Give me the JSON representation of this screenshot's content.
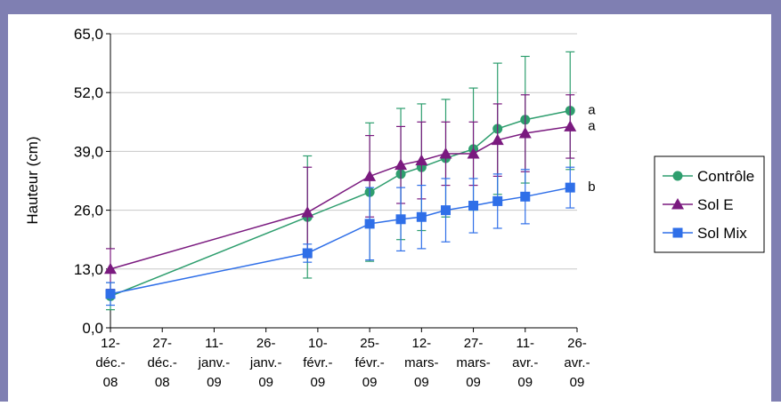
{
  "chart_data": {
    "type": "line",
    "title": "",
    "xlabel": "",
    "ylabel": "Hauteur (cm)",
    "ylim": [
      0,
      65
    ],
    "yticks": [
      "0,0",
      "13,0",
      "26,0",
      "39,0",
      "52,0",
      "65,0"
    ],
    "ytick_values": [
      0,
      13,
      26,
      39,
      52,
      65
    ],
    "xlim": [
      "2008-12-12",
      "2009-04-26"
    ],
    "xticks": [
      {
        "date": "2008-12-12",
        "lines": [
          "12-",
          "déc.-",
          "08"
        ]
      },
      {
        "date": "2008-12-27",
        "lines": [
          "27-",
          "déc.-",
          "08"
        ]
      },
      {
        "date": "2009-01-11",
        "lines": [
          "11-",
          "janv.-",
          "09"
        ]
      },
      {
        "date": "2009-01-26",
        "lines": [
          "26-",
          "janv.-",
          "09"
        ]
      },
      {
        "date": "2009-02-10",
        "lines": [
          "10-",
          "févr.-",
          "09"
        ]
      },
      {
        "date": "2009-02-25",
        "lines": [
          "25-",
          "févr.-",
          "09"
        ]
      },
      {
        "date": "2009-03-12",
        "lines": [
          "12-",
          "mars-",
          "09"
        ]
      },
      {
        "date": "2009-03-27",
        "lines": [
          "27-",
          "mars-",
          "09"
        ]
      },
      {
        "date": "2009-04-11",
        "lines": [
          "11-",
          "avr.-",
          "09"
        ]
      },
      {
        "date": "2009-04-26",
        "lines": [
          "26-",
          "avr.-",
          "09"
        ]
      }
    ],
    "grid": "horizontal",
    "legend": "right",
    "series": [
      {
        "name": "Contrôle",
        "color": "#2e9e6e",
        "marker": "circle",
        "points": [
          {
            "x": "2008-12-12",
            "y": 7.0,
            "err": 3.0
          },
          {
            "x": "2009-02-07",
            "y": 24.5,
            "err": 13.5
          },
          {
            "x": "2009-02-25",
            "y": 30.0,
            "err": 15.3
          },
          {
            "x": "2009-03-06",
            "y": 34.0,
            "err": 14.5
          },
          {
            "x": "2009-03-12",
            "y": 35.5,
            "err": 14.0
          },
          {
            "x": "2009-03-19",
            "y": 37.5,
            "err": 13.0
          },
          {
            "x": "2009-03-27",
            "y": 39.5,
            "err": 13.5
          },
          {
            "x": "2009-04-03",
            "y": 44.0,
            "err": 14.5
          },
          {
            "x": "2009-04-11",
            "y": 46.0,
            "err": 14.0
          },
          {
            "x": "2009-04-24",
            "y": 48.0,
            "err": 13.0
          }
        ]
      },
      {
        "name": "Sol E",
        "color": "#7a1a7f",
        "marker": "triangle",
        "points": [
          {
            "x": "2008-12-12",
            "y": 13.0,
            "err": 4.5
          },
          {
            "x": "2009-02-07",
            "y": 25.5,
            "err": 10.0
          },
          {
            "x": "2009-02-25",
            "y": 33.5,
            "err": 9.0
          },
          {
            "x": "2009-03-06",
            "y": 36.0,
            "err": 8.5
          },
          {
            "x": "2009-03-12",
            "y": 37.0,
            "err": 8.5
          },
          {
            "x": "2009-03-19",
            "y": 38.5,
            "err": 7.0
          },
          {
            "x": "2009-03-27",
            "y": 38.5,
            "err": 7.0
          },
          {
            "x": "2009-04-03",
            "y": 41.5,
            "err": 8.0
          },
          {
            "x": "2009-04-11",
            "y": 43.0,
            "err": 8.5
          },
          {
            "x": "2009-04-24",
            "y": 44.5,
            "err": 7.0
          }
        ]
      },
      {
        "name": "Sol Mix",
        "color": "#2f6fe8",
        "marker": "square",
        "points": [
          {
            "x": "2008-12-12",
            "y": 7.5,
            "err": 2.5
          },
          {
            "x": "2009-02-07",
            "y": 16.5,
            "err": 2.0
          },
          {
            "x": "2009-02-25",
            "y": 23.0,
            "err": 8.0
          },
          {
            "x": "2009-03-06",
            "y": 24.0,
            "err": 7.0
          },
          {
            "x": "2009-03-12",
            "y": 24.5,
            "err": 7.0
          },
          {
            "x": "2009-03-19",
            "y": 26.0,
            "err": 7.0
          },
          {
            "x": "2009-03-27",
            "y": 27.0,
            "err": 6.0
          },
          {
            "x": "2009-04-03",
            "y": 28.0,
            "err": 6.0
          },
          {
            "x": "2009-04-11",
            "y": 29.0,
            "err": 6.0
          },
          {
            "x": "2009-04-24",
            "y": 31.0,
            "err": 4.5
          }
        ]
      }
    ],
    "annotations": [
      {
        "text": "a",
        "series": "Contrôle"
      },
      {
        "text": "a",
        "series": "Sol E"
      },
      {
        "text": "b",
        "series": "Sol Mix"
      }
    ],
    "colors": {
      "frame": "#7f7fb2",
      "grid": "#c8c8c8",
      "axis": "#000000"
    }
  }
}
